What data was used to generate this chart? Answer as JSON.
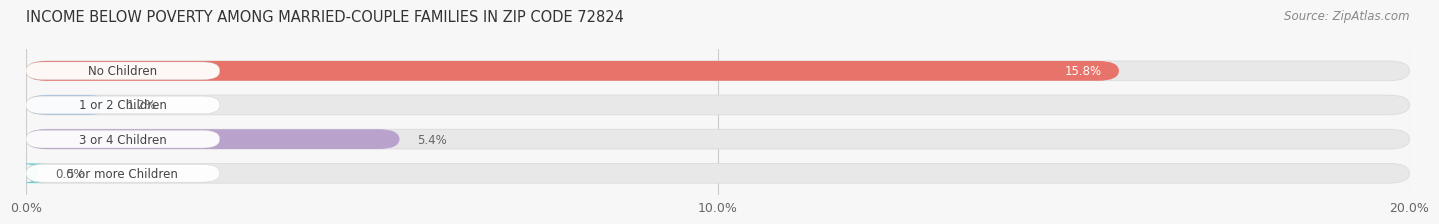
{
  "title": "INCOME BELOW POVERTY AMONG MARRIED-COUPLE FAMILIES IN ZIP CODE 72824",
  "source": "Source: ZipAtlas.com",
  "categories": [
    "No Children",
    "1 or 2 Children",
    "3 or 4 Children",
    "5 or more Children"
  ],
  "values": [
    15.8,
    1.2,
    5.4,
    0.0
  ],
  "bar_colors": [
    "#e8736a",
    "#aac4e2",
    "#b9a2cc",
    "#72cece"
  ],
  "value_labels": [
    "15.8%",
    "1.2%",
    "5.4%",
    "0.0%"
  ],
  "value_inside": [
    true,
    false,
    false,
    false
  ],
  "xlim": [
    0,
    20.0
  ],
  "xticks": [
    0.0,
    10.0,
    20.0
  ],
  "xticklabels": [
    "0.0%",
    "10.0%",
    "20.0%"
  ],
  "background_color": "#f7f7f7",
  "bar_bg_color": "#e8e8e8",
  "bar_border_color": "#d8d8d8",
  "title_fontsize": 10.5,
  "source_fontsize": 8.5,
  "label_fontsize": 8.5,
  "value_fontsize": 8.5,
  "tick_fontsize": 9,
  "bar_height": 0.58,
  "rounding_size": 0.3,
  "label_pill_color": "white",
  "label_text_color": "#444444",
  "value_inside_color": "white",
  "value_outside_color": "#666666",
  "min_bar_for_pill": 0.5
}
